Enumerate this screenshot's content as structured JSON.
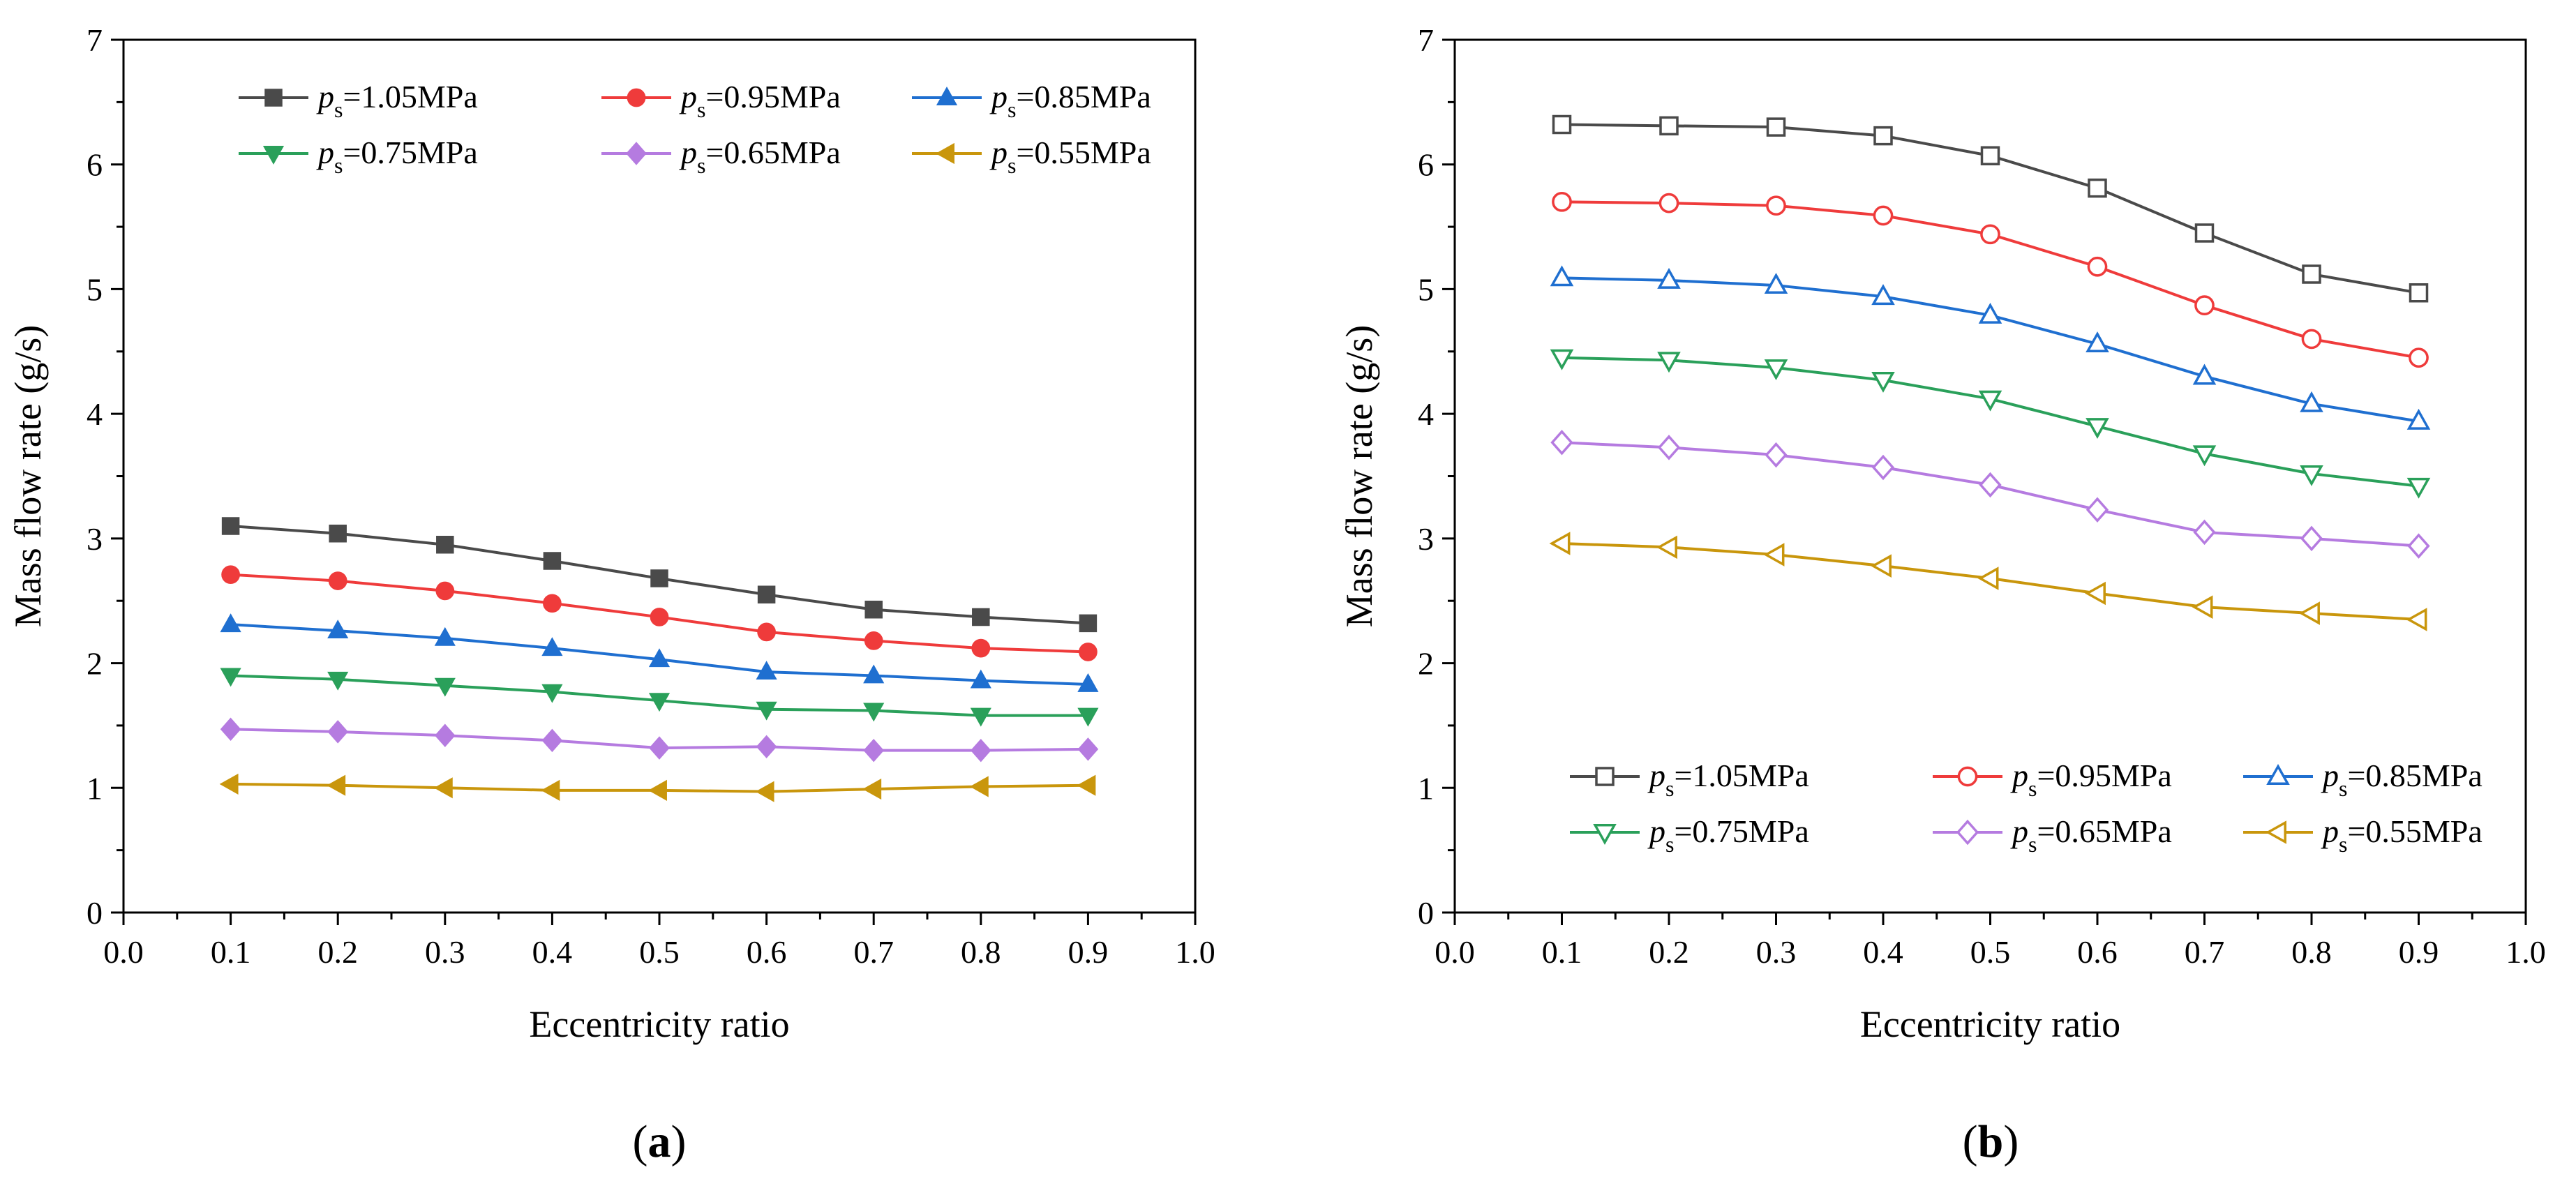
{
  "chart_data": [
    {
      "type": "line",
      "panel": "a",
      "panel_label": "(a)",
      "xlabel": "Eccentricity ratio",
      "ylabel": "Mass flow rate (g/s)",
      "xlim": [
        0.0,
        1.0
      ],
      "ylim": [
        0,
        7
      ],
      "xticks": [
        "0.0",
        "0.1",
        "0.2",
        "0.3",
        "0.4",
        "0.5",
        "0.6",
        "0.7",
        "0.8",
        "0.9",
        "1.0"
      ],
      "yticks": [
        "0",
        "1",
        "2",
        "3",
        "4",
        "5",
        "6",
        "7"
      ],
      "legend_position": "top",
      "marker_fill": "filled",
      "x": [
        0.1,
        0.2,
        0.3,
        0.4,
        0.5,
        0.6,
        0.7,
        0.8,
        0.9
      ],
      "series": [
        {
          "name": "ps=1.05MPa",
          "label_main": "p",
          "label_sub": "s",
          "label_rest": "=1.05MPa",
          "color": "#4a4a4a",
          "marker": "square",
          "values": [
            3.1,
            3.04,
            2.95,
            2.82,
            2.68,
            2.55,
            2.43,
            2.37,
            2.32
          ]
        },
        {
          "name": "ps=0.95MPa",
          "label_main": "p",
          "label_sub": "s",
          "label_rest": "=0.95MPa",
          "color": "#ef3b3b",
          "marker": "circle",
          "values": [
            2.71,
            2.66,
            2.58,
            2.48,
            2.37,
            2.25,
            2.18,
            2.12,
            2.09
          ]
        },
        {
          "name": "ps=0.85MPa",
          "label_main": "p",
          "label_sub": "s",
          "label_rest": "=0.85MPa",
          "color": "#1f6fd0",
          "marker": "triangle-up",
          "values": [
            2.31,
            2.26,
            2.2,
            2.12,
            2.03,
            1.93,
            1.9,
            1.86,
            1.83
          ]
        },
        {
          "name": "ps=0.75MPa",
          "label_main": "p",
          "label_sub": "s",
          "label_rest": "=0.75MPa",
          "color": "#2aa05a",
          "marker": "triangle-down",
          "values": [
            1.9,
            1.87,
            1.82,
            1.77,
            1.7,
            1.63,
            1.62,
            1.58,
            1.58
          ]
        },
        {
          "name": "ps=0.65MPa",
          "label_main": "p",
          "label_sub": "s",
          "label_rest": "=0.65MPa",
          "color": "#b57be0",
          "marker": "diamond",
          "values": [
            1.47,
            1.45,
            1.42,
            1.38,
            1.32,
            1.33,
            1.3,
            1.3,
            1.31
          ]
        },
        {
          "name": "ps=0.55MPa",
          "label_main": "p",
          "label_sub": "s",
          "label_rest": "=0.55MPa",
          "color": "#c9960c",
          "marker": "triangle-left",
          "values": [
            1.03,
            1.02,
            1.0,
            0.98,
            0.98,
            0.97,
            0.99,
            1.01,
            1.02
          ]
        }
      ]
    },
    {
      "type": "line",
      "panel": "b",
      "panel_label": "(b)",
      "xlabel": "Eccentricity ratio",
      "ylabel": "Mass flow rate (g/s)",
      "xlim": [
        0.0,
        1.0
      ],
      "ylim": [
        0,
        7
      ],
      "xticks": [
        "0.0",
        "0.1",
        "0.2",
        "0.3",
        "0.4",
        "0.5",
        "0.6",
        "0.7",
        "0.8",
        "0.9",
        "1.0"
      ],
      "yticks": [
        "0",
        "1",
        "2",
        "3",
        "4",
        "5",
        "6",
        "7"
      ],
      "legend_position": "bottom",
      "marker_fill": "hollow",
      "x": [
        0.1,
        0.2,
        0.3,
        0.4,
        0.5,
        0.6,
        0.7,
        0.8,
        0.9
      ],
      "series": [
        {
          "name": "ps=1.05MPa",
          "label_main": "p",
          "label_sub": "s",
          "label_rest": "=1.05MPa",
          "color": "#4a4a4a",
          "marker": "square",
          "values": [
            6.32,
            6.31,
            6.3,
            6.23,
            6.07,
            5.81,
            5.45,
            5.12,
            4.97
          ]
        },
        {
          "name": "ps=0.95MPa",
          "label_main": "p",
          "label_sub": "s",
          "label_rest": "=0.95MPa",
          "color": "#ef3b3b",
          "marker": "circle",
          "values": [
            5.7,
            5.69,
            5.67,
            5.59,
            5.44,
            5.18,
            4.87,
            4.6,
            4.45
          ]
        },
        {
          "name": "ps=0.85MPa",
          "label_main": "p",
          "label_sub": "s",
          "label_rest": "=0.85MPa",
          "color": "#1f6fd0",
          "marker": "triangle-up",
          "values": [
            5.09,
            5.07,
            5.03,
            4.94,
            4.79,
            4.56,
            4.3,
            4.08,
            3.94
          ]
        },
        {
          "name": "ps=0.75MPa",
          "label_main": "p",
          "label_sub": "s",
          "label_rest": "=0.75MPa",
          "color": "#2aa05a",
          "marker": "triangle-down",
          "values": [
            4.45,
            4.43,
            4.37,
            4.27,
            4.12,
            3.9,
            3.68,
            3.52,
            3.42
          ]
        },
        {
          "name": "ps=0.65MPa",
          "label_main": "p",
          "label_sub": "s",
          "label_rest": "=0.65MPa",
          "color": "#b57be0",
          "marker": "diamond",
          "values": [
            3.77,
            3.73,
            3.67,
            3.57,
            3.43,
            3.23,
            3.05,
            3.0,
            2.94
          ]
        },
        {
          "name": "ps=0.55MPa",
          "label_main": "p",
          "label_sub": "s",
          "label_rest": "=0.55MPa",
          "color": "#c9960c",
          "marker": "triangle-left",
          "values": [
            2.96,
            2.93,
            2.87,
            2.78,
            2.68,
            2.56,
            2.45,
            2.4,
            2.35
          ]
        }
      ]
    }
  ]
}
